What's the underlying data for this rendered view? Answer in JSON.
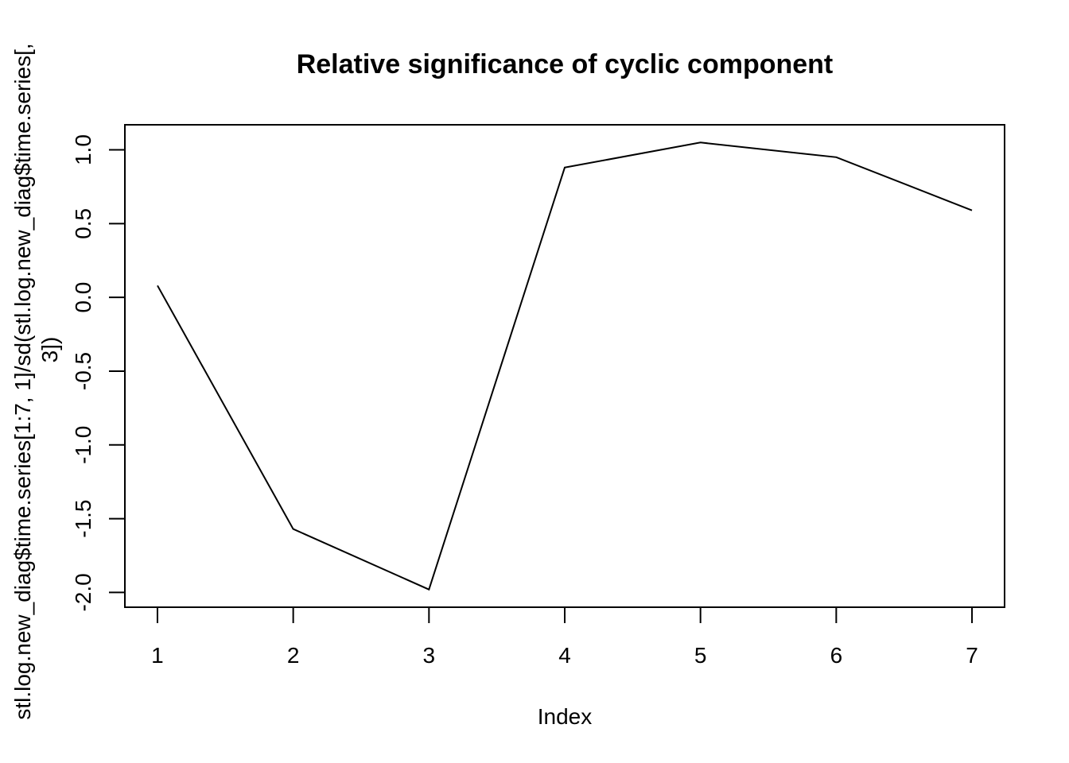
{
  "chart_data": {
    "type": "line",
    "title": "Relative significance of cyclic component",
    "xlabel": "Index",
    "ylabel_lines": [
      "stl.log.new_diag$time.series[1:7, 1]/sd(stl.log.new_diag$time.series[,",
      "3])"
    ],
    "x": [
      1,
      2,
      3,
      4,
      5,
      6,
      7
    ],
    "values": [
      0.08,
      -1.57,
      -1.98,
      0.88,
      1.05,
      0.95,
      0.59
    ],
    "xlim": [
      0.76,
      7.24
    ],
    "ylim": [
      -2.1,
      1.17
    ],
    "x_ticks": [
      1,
      2,
      3,
      4,
      5,
      6,
      7
    ],
    "x_tick_labels": [
      "1",
      "2",
      "3",
      "4",
      "5",
      "6",
      "7"
    ],
    "y_ticks": [
      -2.0,
      -1.5,
      -1.0,
      -0.5,
      0.0,
      0.5,
      1.0
    ],
    "y_tick_labels": [
      "-2.0",
      "-1.5",
      "-1.0",
      "-0.5",
      "0.0",
      "0.5",
      "1.0"
    ],
    "grid": false,
    "line_color": "#000000"
  }
}
